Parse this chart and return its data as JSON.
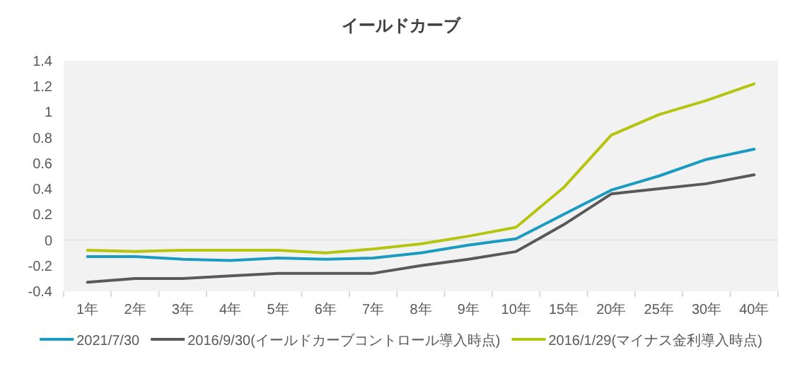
{
  "chart_data": {
    "type": "line",
    "title": "イールドカーブ",
    "categories": [
      "1年",
      "2年",
      "3年",
      "4年",
      "5年",
      "6年",
      "7年",
      "8年",
      "9年",
      "10年",
      "15年",
      "20年",
      "25年",
      "30年",
      "40年"
    ],
    "series": [
      {
        "name": "2021/7/30",
        "color": "#1a9bbf",
        "values": [
          -0.13,
          -0.13,
          -0.15,
          -0.16,
          -0.14,
          -0.15,
          -0.14,
          -0.1,
          -0.04,
          0.01,
          0.2,
          0.39,
          0.5,
          0.63,
          0.71
        ]
      },
      {
        "name": "2016/9/30(イールドカーブコントロール導入時点)",
        "color": "#595959",
        "values": [
          -0.33,
          -0.3,
          -0.3,
          -0.28,
          -0.26,
          -0.26,
          -0.26,
          -0.2,
          -0.15,
          -0.09,
          0.12,
          0.36,
          0.4,
          0.44,
          0.51
        ]
      },
      {
        "name": "2016/1/29(マイナス金利導入時点)",
        "color": "#b5c40e",
        "values": [
          -0.08,
          -0.09,
          -0.08,
          -0.08,
          -0.08,
          -0.1,
          -0.07,
          -0.03,
          0.03,
          0.1,
          0.41,
          0.82,
          0.98,
          1.09,
          1.22
        ]
      }
    ],
    "ylim": [
      -0.4,
      1.4
    ],
    "yticks": [
      -0.4,
      -0.2,
      0,
      0.2,
      0.4,
      0.6,
      0.8,
      1,
      1.2,
      1.4
    ],
    "ref_lines": [
      {
        "axis": "y",
        "value": 0,
        "color": "#e3e3e3"
      }
    ],
    "legend": "bottom",
    "grid": false
  }
}
